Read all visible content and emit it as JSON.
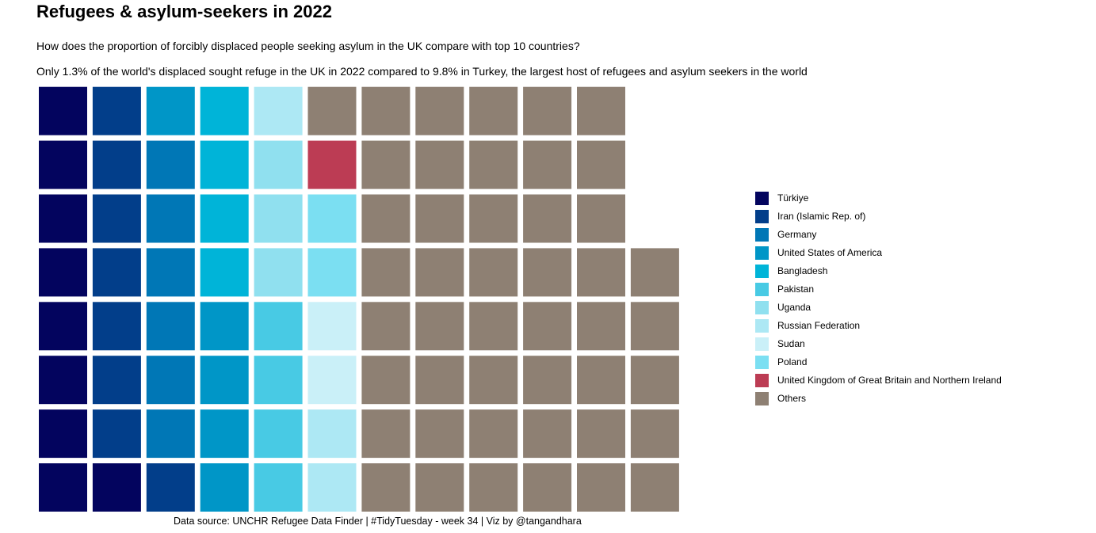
{
  "title": "Refugees & asylum-seekers in 2022",
  "subtitle": "How does the proportion of forcibly displaced people seeking asylum in the UK compare with top 10 countries?",
  "description": "Only 1.3% of the world's displaced sought refuge in the UK in 2022 compared to 9.8% in Turkey, the largest host of refugees and asylum seekers in the world",
  "caption": "Data source: UNCHR Refugee Data Finder | #TidyTuesday - week 34 | Viz by @tangandhara",
  "chart_data": {
    "type": "waffle",
    "grid": {
      "rows": 8,
      "columns_max": 12
    },
    "legend_position": "right",
    "categories": [
      {
        "name": "Türkiye",
        "color": "#03045E",
        "squares": 9
      },
      {
        "name": "Iran (Islamic Rep. of)",
        "color": "#023E8A",
        "squares": 8
      },
      {
        "name": "Germany",
        "color": "#0077B6",
        "squares": 6
      },
      {
        "name": "United States of America",
        "color": "#0096C7",
        "squares": 5
      },
      {
        "name": "Bangladesh",
        "color": "#00B4D8",
        "squares": 4
      },
      {
        "name": "Pakistan",
        "color": "#48CAE4",
        "squares": 4
      },
      {
        "name": "Uganda",
        "color": "#90E0EF",
        "squares": 3
      },
      {
        "name": "Russian Federation",
        "color": "#ADE8F4",
        "squares": 3
      },
      {
        "name": "Sudan",
        "color": "#CAF0F8",
        "squares": 2
      },
      {
        "name": "Poland",
        "color": "#7BDFF2",
        "squares": 2
      },
      {
        "name": "United Kingdom of Great Britain and Northern Ireland",
        "color": "#BC3C54",
        "squares": 1
      },
      {
        "name": "Others",
        "color": "#8E8073",
        "squares": 46
      }
    ]
  }
}
